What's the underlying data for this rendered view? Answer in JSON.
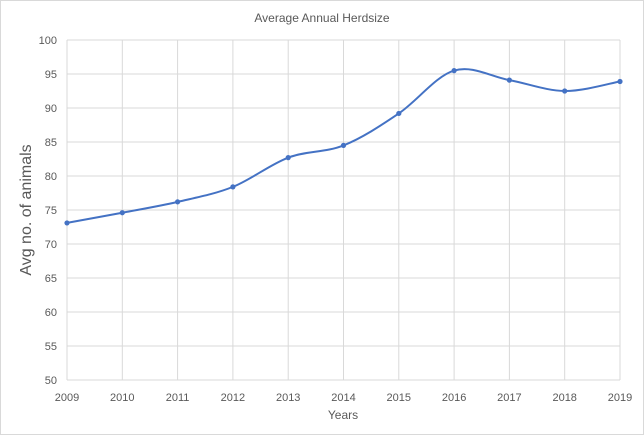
{
  "chart_data": {
    "type": "line",
    "title": "Average Annual Herdsize",
    "xlabel": "Years",
    "ylabel": "Avg no. of animals",
    "x": [
      2009,
      2010,
      2011,
      2012,
      2013,
      2014,
      2015,
      2016,
      2017,
      2018,
      2019
    ],
    "series": [
      {
        "values": [
          73.1,
          74.6,
          76.2,
          78.4,
          82.7,
          84.5,
          89.2,
          95.5,
          94.1,
          92.5,
          93.9
        ]
      }
    ],
    "xlim": [
      2009,
      2019
    ],
    "ylim": [
      50,
      100
    ],
    "yticks": [
      50,
      55,
      60,
      65,
      70,
      75,
      80,
      85,
      90,
      95,
      100
    ],
    "grid": true,
    "smooth": true,
    "line_color": "#4472c4",
    "legend": "none"
  }
}
